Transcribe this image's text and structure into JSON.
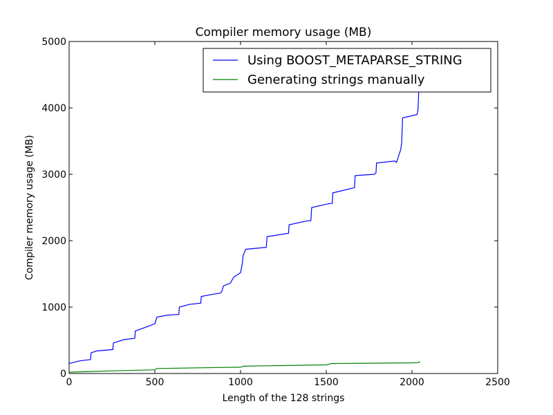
{
  "chart_data": {
    "type": "line",
    "title": "Compiler memory usage (MB)",
    "xlabel": "Length of the 128 strings",
    "ylabel": "Compiler memory usage (MB)",
    "xlim": [
      0,
      2500
    ],
    "ylim": [
      0,
      5000
    ],
    "xticks": [
      "0",
      "500",
      "1000",
      "1500",
      "2000",
      "2500"
    ],
    "yticks": [
      "0",
      "1000",
      "2000",
      "3000",
      "4000",
      "5000"
    ],
    "grid": false,
    "legend_position": "top-right",
    "series": [
      {
        "name": "Using BOOST_METAPARSE_STRING",
        "color": "#0000ff",
        "x": [
          0,
          60,
          125,
          128,
          160,
          255,
          258,
          320,
          383,
          386,
          450,
          500,
          512,
          580,
          640,
          643,
          700,
          768,
          771,
          830,
          880,
          890,
          900,
          940,
          960,
          1000,
          1010,
          1015,
          1030,
          1150,
          1155,
          1250,
          1280,
          1283,
          1390,
          1410,
          1415,
          1520,
          1535,
          1538,
          1650,
          1665,
          1668,
          1780,
          1790,
          1793,
          1900,
          1910,
          1915,
          1935,
          1940,
          1945,
          2030,
          2035,
          2040
        ],
        "y": [
          150,
          190,
          210,
          310,
          340,
          360,
          460,
          510,
          530,
          640,
          700,
          750,
          850,
          880,
          890,
          1000,
          1040,
          1060,
          1160,
          1190,
          1210,
          1230,
          1320,
          1360,
          1450,
          1520,
          1650,
          1780,
          1870,
          1900,
          2060,
          2100,
          2110,
          2240,
          2300,
          2300,
          2500,
          2560,
          2560,
          2720,
          2790,
          2800,
          2980,
          3000,
          3020,
          3170,
          3200,
          3180,
          3220,
          3380,
          3480,
          3850,
          3900,
          3970,
          4290
        ]
      },
      {
        "name": "Generating strings manually",
        "color": "#008000",
        "x": [
          0,
          250,
          500,
          510,
          750,
          1000,
          1020,
          1250,
          1500,
          1530,
          1750,
          2000,
          2040,
          2045
        ],
        "y": [
          20,
          40,
          55,
          75,
          85,
          95,
          110,
          120,
          130,
          150,
          155,
          160,
          165,
          185
        ]
      }
    ]
  }
}
